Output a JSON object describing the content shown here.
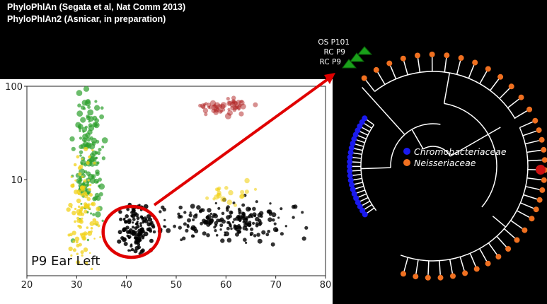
{
  "header": {
    "line1": "PhyloPhlAn (Segata et al, Nat Comm 2013)",
    "line2": "PhyloPhlAn2 (Asnicar, in preparation)"
  },
  "chart_data": {
    "type": "scatter",
    "panel_label": "P9 Ear Left",
    "x_ticks": [
      "20",
      "30",
      "40",
      "50",
      "60",
      "70",
      "80"
    ],
    "y_ticks": [
      "100",
      "10"
    ],
    "xlim": [
      20,
      80
    ],
    "y_scale": "log",
    "clusters": [
      {
        "color": "#2ca02c",
        "x_center": 32.5,
        "y_center": 15
      },
      {
        "color": "#f2d21a",
        "x_center": 31,
        "y_center": 4.5
      },
      {
        "color": "#000000",
        "x_center": 42,
        "y_center": 3
      },
      {
        "color": "#000000",
        "x_center": 60,
        "y_center": 3.6
      },
      {
        "color": "#b02020",
        "x_center": 60,
        "y_center": 60
      },
      {
        "color": "#f2d21a",
        "x_center": 60,
        "y_center": 7
      }
    ],
    "highlight": {
      "shape": "ellipse",
      "color": "#e00000",
      "x": 41,
      "y": 3
    }
  },
  "tree": {
    "labels": [
      "OS P101",
      "RC P9",
      "RC P9"
    ],
    "legend": [
      {
        "label": "Chromobacteriaceae",
        "color": "#1a1aee"
      },
      {
        "label": "Neisseriaceae",
        "color": "#f07020"
      }
    ],
    "colors": {
      "marker": "#1aa01a",
      "highlight": "#cc1111",
      "arrow": "#e00000"
    }
  }
}
